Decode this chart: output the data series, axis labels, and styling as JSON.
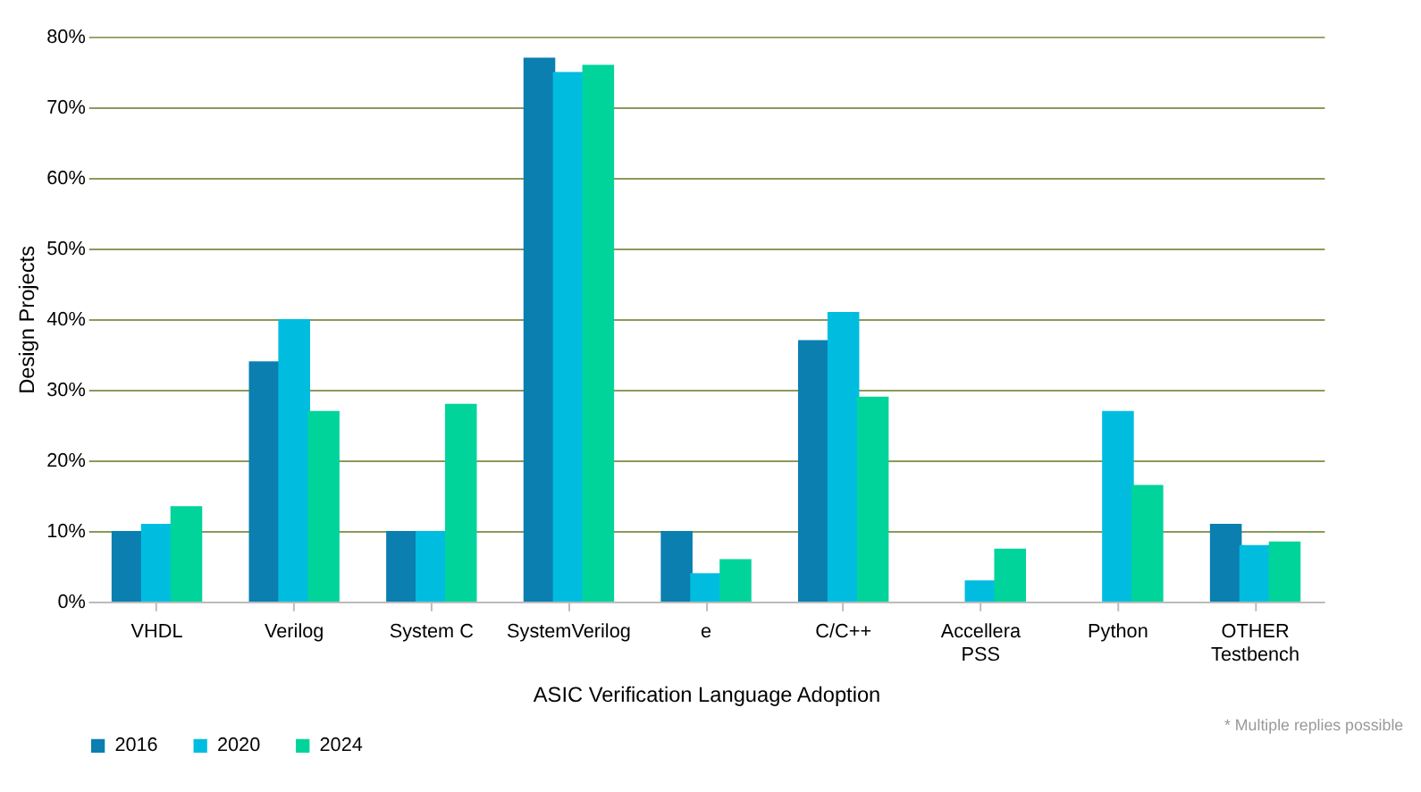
{
  "chart_data": {
    "type": "bar",
    "xlabel": "ASIC Verification Language Adoption",
    "ylabel": "Design Projects",
    "categories": [
      "VHDL",
      "Verilog",
      "System C",
      "SystemVerilog",
      "e",
      "C/C++",
      "Accellera PSS",
      "Python",
      "OTHER Testbench"
    ],
    "series": [
      {
        "name": "2016",
        "color": "#0a7fb0",
        "values": [
          10,
          34,
          10,
          77,
          10,
          37,
          null,
          null,
          11
        ]
      },
      {
        "name": "2020",
        "color": "#00bde0",
        "values": [
          11,
          40,
          10,
          75,
          4,
          41,
          3,
          27,
          8
        ]
      },
      {
        "name": "2024",
        "color": "#00d49a",
        "values": [
          13.5,
          27,
          28,
          76,
          6,
          29,
          7.5,
          16.5,
          8.5
        ]
      }
    ],
    "ylim": [
      0,
      80
    ],
    "yticks": [
      {
        "value": 0,
        "label": "0%"
      },
      {
        "value": 10,
        "label": "10%"
      },
      {
        "value": 20,
        "label": "20%"
      },
      {
        "value": 30,
        "label": "30%"
      },
      {
        "value": 40,
        "label": "40%"
      },
      {
        "value": 50,
        "label": "50%"
      },
      {
        "value": 60,
        "label": "60%"
      },
      {
        "value": 70,
        "label": "70%"
      },
      {
        "value": 80,
        "label": "80%"
      }
    ],
    "grid": "y",
    "legend": "bottom",
    "annotations": [
      "* Multiple replies possible"
    ]
  }
}
